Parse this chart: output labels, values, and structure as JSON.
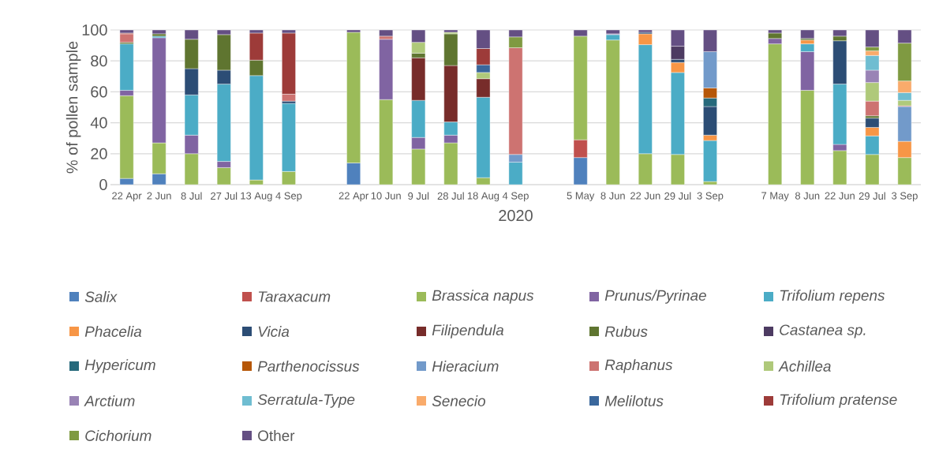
{
  "chart_data": {
    "type": "bar",
    "stacked": true,
    "ylabel": "% of pollen sample",
    "xlabel": "2020",
    "grid": "y",
    "legend": "bottom",
    "categories": [
      "22 Apr",
      "2 Jun",
      "8 Jul",
      "27 Jul",
      "13 Aug",
      "4 Sep",
      null,
      "22 Apr",
      "10 Jun",
      "9 Jul",
      "28 Jul",
      "18 Aug",
      "4 Sep",
      null,
      "5 May",
      "8 Jun",
      "22 Jun",
      "29 Jul",
      "3 Sep",
      null,
      "7 May",
      "8 Jun",
      "22 Jun",
      "29 Jul",
      "3 Sep"
    ],
    "ylim": [
      0,
      100
    ],
    "yticks": [
      0,
      20,
      40,
      60,
      80,
      100
    ],
    "series": [
      {
        "name": "Salix",
        "color": "#4f81bd",
        "values": [
          4,
          7,
          null,
          null,
          null,
          null,
          null,
          14,
          null,
          null,
          null,
          null,
          null,
          null,
          17.5,
          null,
          null,
          null,
          null,
          null,
          null,
          null,
          null,
          null,
          null
        ]
      },
      {
        "name": "Taraxacum",
        "color": "#c0504d",
        "values": [
          null,
          null,
          null,
          null,
          null,
          null,
          null,
          null,
          null,
          null,
          null,
          null,
          null,
          null,
          11.5,
          null,
          null,
          null,
          null,
          null,
          null,
          null,
          null,
          null,
          null
        ]
      },
      {
        "name": "Brassica napus",
        "color": "#9bbb59",
        "values": [
          53.5,
          20,
          20,
          11,
          3,
          8.5,
          null,
          84.5,
          55,
          23,
          27,
          4.5,
          null,
          null,
          67,
          93.5,
          20,
          19.5,
          2,
          null,
          91,
          61,
          22,
          19.5,
          17.5
        ]
      },
      {
        "name": "Prunus/Pyrinae",
        "color": "#8064a2",
        "values": [
          3.5,
          68,
          12,
          4,
          null,
          null,
          null,
          null,
          39,
          7.5,
          5,
          null,
          null,
          null,
          null,
          null,
          null,
          null,
          null,
          null,
          3.5,
          25,
          4,
          null,
          null
        ]
      },
      {
        "name": "Trifolium repens",
        "color": "#4bacc6",
        "values": [
          30,
          1,
          26,
          50,
          67.5,
          44,
          null,
          null,
          null,
          24,
          8.5,
          52,
          14.5,
          null,
          null,
          3.5,
          70.5,
          53,
          26.5,
          null,
          null,
          5,
          39,
          12,
          null
        ]
      },
      {
        "name": "Phacelia",
        "color": "#f79646",
        "values": [
          null,
          null,
          null,
          null,
          null,
          null,
          null,
          null,
          null,
          null,
          null,
          null,
          null,
          null,
          null,
          null,
          7,
          6.5,
          3.5,
          null,
          null,
          2.5,
          null,
          5.5,
          10.5
        ]
      },
      {
        "name": "Vicia",
        "color": "#2c4d75",
        "values": [
          null,
          null,
          17,
          9,
          null,
          1.5,
          null,
          null,
          null,
          null,
          null,
          null,
          null,
          null,
          null,
          null,
          1,
          2,
          18.5,
          null,
          null,
          null,
          28,
          6,
          null
        ]
      },
      {
        "name": "Filipendula",
        "color": "#772c2a",
        "values": [
          null,
          null,
          null,
          null,
          null,
          null,
          null,
          null,
          null,
          27.5,
          36.5,
          12,
          null,
          null,
          null,
          null,
          null,
          null,
          null,
          null,
          null,
          null,
          null,
          null,
          null
        ]
      },
      {
        "name": "Rubus",
        "color": "#5f7530",
        "values": [
          1,
          1.5,
          19,
          23,
          10,
          null,
          null,
          null,
          null,
          3,
          20.5,
          null,
          null,
          null,
          null,
          null,
          null,
          null,
          null,
          null,
          3.5,
          1,
          3,
          1.5,
          null
        ]
      },
      {
        "name": "Castanea sp.",
        "color": "#4d3b62",
        "values": [
          null,
          null,
          null,
          null,
          null,
          null,
          null,
          null,
          null,
          null,
          null,
          null,
          null,
          null,
          null,
          null,
          null,
          8.5,
          null,
          null,
          null,
          null,
          null,
          null,
          null
        ]
      },
      {
        "name": "Hypericum",
        "color": "#276a7c",
        "values": [
          null,
          null,
          null,
          null,
          null,
          null,
          null,
          null,
          null,
          null,
          null,
          null,
          null,
          null,
          null,
          null,
          null,
          null,
          5.5,
          null,
          null,
          null,
          null,
          null,
          null
        ]
      },
      {
        "name": "Parthenocissus",
        "color": "#b65708",
        "values": [
          null,
          null,
          null,
          null,
          null,
          null,
          null,
          null,
          null,
          null,
          null,
          null,
          null,
          null,
          null,
          null,
          null,
          null,
          6.5,
          null,
          null,
          null,
          null,
          null,
          null
        ]
      },
      {
        "name": "Hieracium",
        "color": "#729aca",
        "values": [
          null,
          null,
          null,
          null,
          null,
          null,
          null,
          null,
          null,
          null,
          null,
          null,
          5,
          null,
          null,
          null,
          null,
          null,
          23.5,
          null,
          null,
          null,
          null,
          null,
          22.5
        ]
      },
      {
        "name": "Raphanus",
        "color": "#cd7371",
        "values": [
          5.5,
          null,
          null,
          null,
          null,
          4.5,
          null,
          null,
          2,
          null,
          null,
          null,
          69,
          null,
          null,
          null,
          null,
          null,
          null,
          null,
          null,
          null,
          null,
          9.5,
          0.5
        ]
      },
      {
        "name": "Achillea",
        "color": "#afc97a",
        "values": [
          null,
          null,
          null,
          null,
          null,
          null,
          null,
          null,
          null,
          7,
          1,
          4,
          null,
          null,
          null,
          null,
          null,
          null,
          null,
          null,
          null,
          null,
          null,
          12,
          3.5
        ]
      },
      {
        "name": "Arctium",
        "color": "#9983b5",
        "values": [
          null,
          null,
          null,
          null,
          null,
          null,
          null,
          null,
          null,
          null,
          null,
          null,
          null,
          null,
          null,
          0.5,
          null,
          null,
          null,
          null,
          null,
          null,
          null,
          8,
          null
        ]
      },
      {
        "name": "Serratula-Type",
        "color": "#6fbdd1",
        "values": [
          null,
          null,
          null,
          null,
          null,
          null,
          null,
          null,
          null,
          null,
          null,
          null,
          null,
          null,
          null,
          null,
          null,
          null,
          null,
          null,
          null,
          null,
          null,
          9.5,
          5
        ]
      },
      {
        "name": "Senecio",
        "color": "#f9ab6b",
        "values": [
          null,
          null,
          null,
          null,
          null,
          null,
          null,
          null,
          null,
          null,
          null,
          null,
          null,
          null,
          null,
          null,
          null,
          null,
          null,
          null,
          null,
          null,
          null,
          3,
          7.5
        ]
      },
      {
        "name": "Melilotus",
        "color": "#3a679c",
        "values": [
          null,
          null,
          null,
          null,
          null,
          null,
          null,
          null,
          null,
          null,
          null,
          5,
          null,
          null,
          null,
          null,
          null,
          null,
          null,
          null,
          null,
          null,
          null,
          null,
          null
        ]
      },
      {
        "name": "Trifolium pratense",
        "color": "#9d3b39",
        "values": [
          0.5,
          null,
          null,
          null,
          17.5,
          39.5,
          null,
          null,
          null,
          null,
          null,
          10.5,
          null,
          null,
          null,
          null,
          null,
          null,
          null,
          null,
          null,
          null,
          null,
          null,
          null
        ]
      },
      {
        "name": "Cichorium",
        "color": "#7f9a41",
        "values": [
          null,
          null,
          null,
          null,
          null,
          null,
          null,
          null,
          null,
          null,
          null,
          null,
          7,
          null,
          null,
          null,
          null,
          null,
          null,
          null,
          null,
          null,
          null,
          2.5,
          24.5
        ]
      },
      {
        "name": "Other",
        "color": "#644f83",
        "values": [
          2,
          2.5,
          6,
          3,
          2,
          2,
          null,
          1.5,
          4,
          8,
          1.5,
          12,
          4.5,
          null,
          4,
          2.5,
          1.5,
          10.5,
          14,
          null,
          2,
          5.5,
          4,
          11,
          8.5
        ]
      }
    ]
  }
}
